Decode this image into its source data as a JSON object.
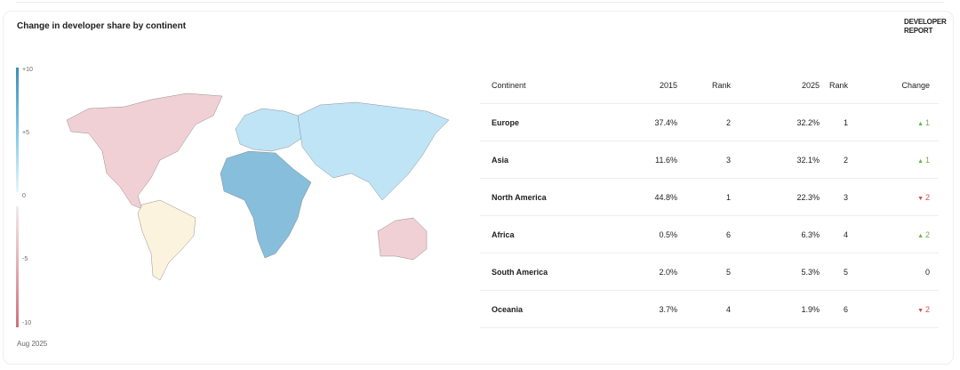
{
  "title": "Change in developer share by continent",
  "brand": [
    "DEVELOPER",
    "REPORT"
  ],
  "date": "Aug 2025",
  "legend": {
    "ticks": [
      "+10",
      "+5",
      "0",
      "-5",
      "-10"
    ],
    "positive_color": "#3a8fb7",
    "negative_color": "#d0707a"
  },
  "colors": {
    "Europe": "#bfe4f6",
    "Asia": "#bfe4f6",
    "Africa": "#86bedc",
    "North America": "#f1d0d5",
    "South America": "#fbf3dd",
    "Oceania": "#f1d0d5",
    "up": "#6ab04c",
    "down": "#e04848"
  },
  "chart_data": {
    "type": "table",
    "columns": [
      "Continent",
      "2015",
      "Rank",
      "2025",
      "Rank",
      "Change"
    ],
    "rows": [
      {
        "continent": "Europe",
        "y2015": "37.4%",
        "rank2015": "2",
        "y2025": "32.2%",
        "rank2025": "1",
        "change": "1",
        "dir": "up"
      },
      {
        "continent": "Asia",
        "y2015": "11.6%",
        "rank2015": "3",
        "y2025": "32.1%",
        "rank2025": "2",
        "change": "1",
        "dir": "up"
      },
      {
        "continent": "North America",
        "y2015": "44.8%",
        "rank2015": "1",
        "y2025": "22.3%",
        "rank2025": "3",
        "change": "2",
        "dir": "down"
      },
      {
        "continent": "Africa",
        "y2015": "0.5%",
        "rank2015": "6",
        "y2025": "6.3%",
        "rank2025": "4",
        "change": "2",
        "dir": "up"
      },
      {
        "continent": "South America",
        "y2015": "2.0%",
        "rank2015": "5",
        "y2025": "5.3%",
        "rank2025": "5",
        "change": "0",
        "dir": "none"
      },
      {
        "continent": "Oceania",
        "y2015": "3.7%",
        "rank2015": "4",
        "y2025": "1.9%",
        "rank2025": "6",
        "change": "2",
        "dir": "down"
      }
    ],
    "legend_range": [
      -10,
      10
    ]
  }
}
